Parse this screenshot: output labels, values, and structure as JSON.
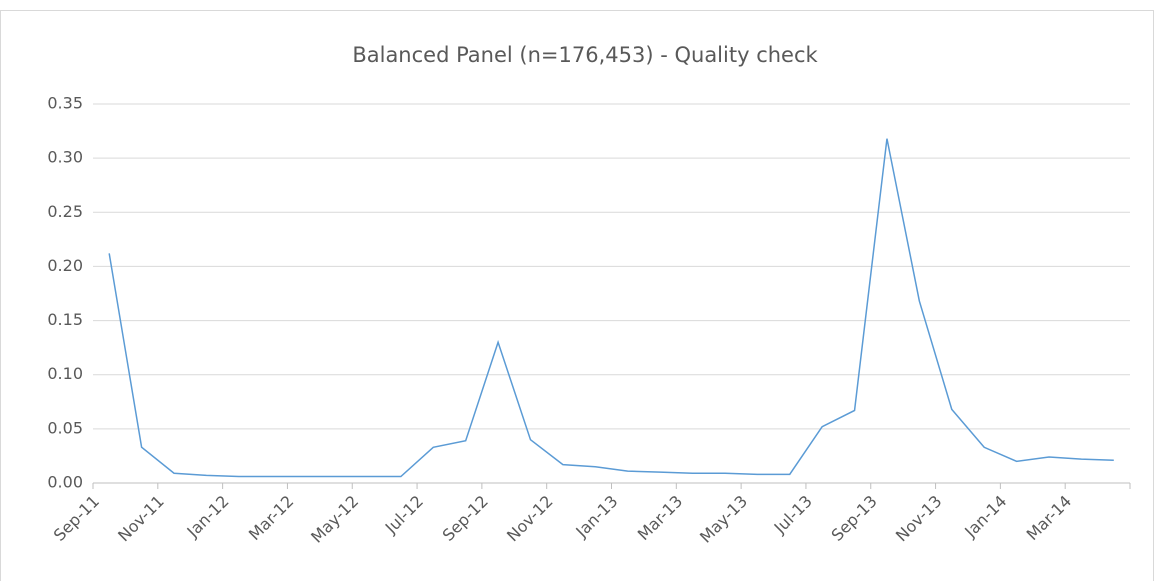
{
  "chart_data": {
    "type": "line",
    "title": "Balanced Panel (n=176,453) - Quality check",
    "categories": [
      "Sep-11",
      null,
      "Nov-11",
      null,
      "Jan-12",
      null,
      "Mar-12",
      null,
      "May-12",
      null,
      "Jul-12",
      null,
      "Sep-12",
      null,
      "Nov-12",
      null,
      "Jan-13",
      null,
      "Mar-13",
      null,
      "May-13",
      null,
      "Jul-13",
      null,
      "Sep-13",
      null,
      "Nov-13",
      null,
      "Jan-14",
      null,
      "Mar-14",
      null
    ],
    "values": [
      0.212,
      0.033,
      0.009,
      0.007,
      0.006,
      0.006,
      0.006,
      0.006,
      0.006,
      0.006,
      0.033,
      0.039,
      0.13,
      0.04,
      0.017,
      0.015,
      0.011,
      0.01,
      0.009,
      0.009,
      0.008,
      0.008,
      0.052,
      0.067,
      0.318,
      0.168,
      0.068,
      0.033,
      0.02,
      0.024,
      0.022,
      0.021
    ],
    "color": "#5b9bd5",
    "ylim": [
      0,
      0.35
    ],
    "yticks": [
      {
        "value": 0,
        "label": "0.00"
      },
      0.05,
      {
        "value": 0.1,
        "label": "0.10"
      },
      0.15,
      {
        "value": 0.2,
        "label": "0.20"
      },
      0.25,
      {
        "value": 0.3,
        "label": "0.30"
      },
      0.35
    ],
    "grid": true
  }
}
